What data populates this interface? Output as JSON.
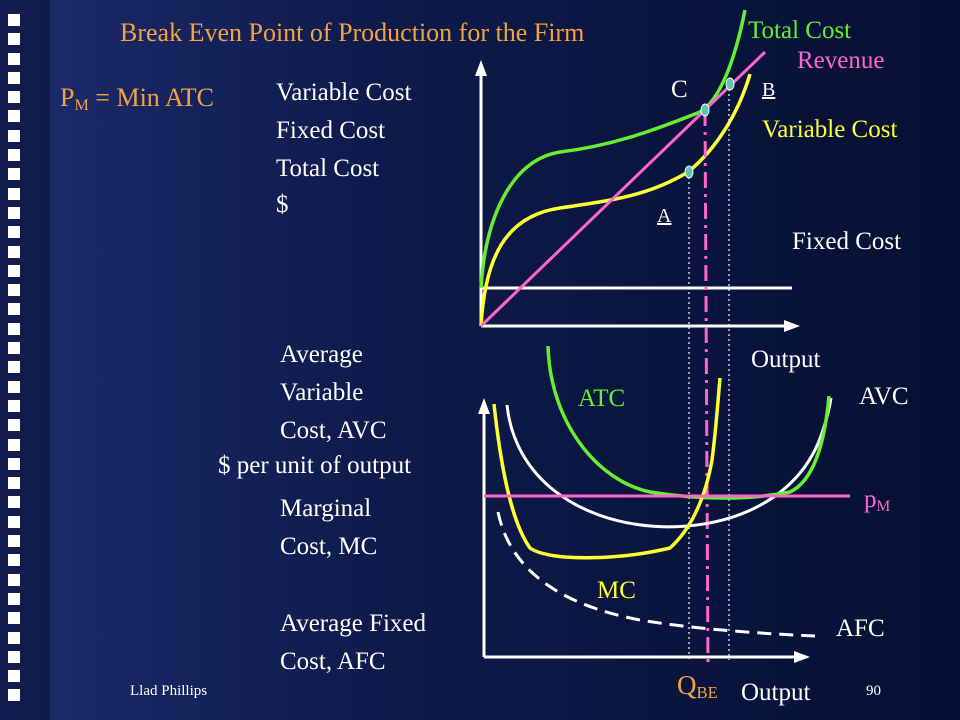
{
  "title": "Break Even Point of Production for the Firm",
  "pm_label": {
    "p": "P",
    "sub": "M",
    "rest": " = Min ATC"
  },
  "upper_axis": {
    "ylabels": [
      "Variable Cost",
      "Fixed Cost",
      "Total Cost",
      "$"
    ],
    "xlabel": "Output"
  },
  "upper_curves": {
    "total_cost": "Total Cost",
    "revenue": "Revenue",
    "variable_cost": "Variable Cost",
    "fixed_cost": "Fixed Cost"
  },
  "points": {
    "a": "A",
    "b": "B",
    "c": "C"
  },
  "lower_axis": {
    "ylabels": [
      "Average",
      "Variable",
      "Cost, AVC",
      "$ per unit of output",
      "Marginal",
      "Cost, MC",
      "Average Fixed",
      "Cost, AFC"
    ],
    "xlabel": "Output"
  },
  "lower_curves": {
    "atc": "ATC",
    "avc": "AVC",
    "mc": "MC",
    "afc": "AFC",
    "pm": {
      "p": "p",
      "sub": "M"
    }
  },
  "qbe": {
    "q": "Q",
    "sub": "BE"
  },
  "footer": {
    "author": "Llad Phillips",
    "page": "90"
  },
  "colors": {
    "title": "#f4a340",
    "total_cost": "#66ee33",
    "variable_cost": "#ffff33",
    "revenue": "#ff66cc",
    "axes": "#ffffff",
    "points": "#5cc6b4"
  }
}
